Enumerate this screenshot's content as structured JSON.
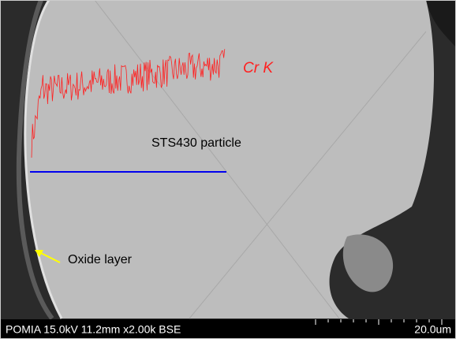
{
  "labels": {
    "element": "Cr K",
    "particle": "STS430 particle",
    "oxide": "Oxide layer"
  },
  "footer": {
    "info": "POMIA 15.0kV 11.2mm x2.00k BSE",
    "scale": "20.0um"
  }
}
